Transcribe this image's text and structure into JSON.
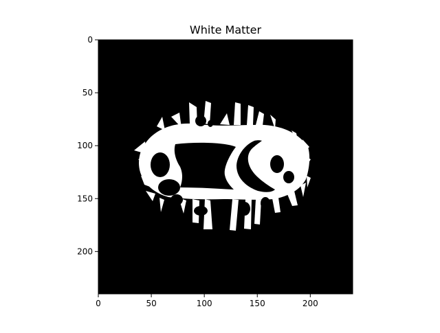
{
  "figure": {
    "title": "White Matter",
    "background_color": "#ffffff",
    "image_background_color": "#000000",
    "mask_color": "#ffffff",
    "axis_color": "#000000"
  },
  "image": {
    "width_units": 240,
    "height_units": 240,
    "xlim": [
      0,
      240
    ],
    "ylim": [
      240,
      0
    ],
    "x_ticks": [
      0,
      50,
      100,
      150,
      200
    ],
    "y_ticks": [
      0,
      50,
      100,
      150,
      200
    ],
    "x_tick_labels": [
      "0",
      "50",
      "100",
      "150",
      "200"
    ],
    "y_tick_labels": [
      "0",
      "50",
      "100",
      "150",
      "200"
    ]
  }
}
